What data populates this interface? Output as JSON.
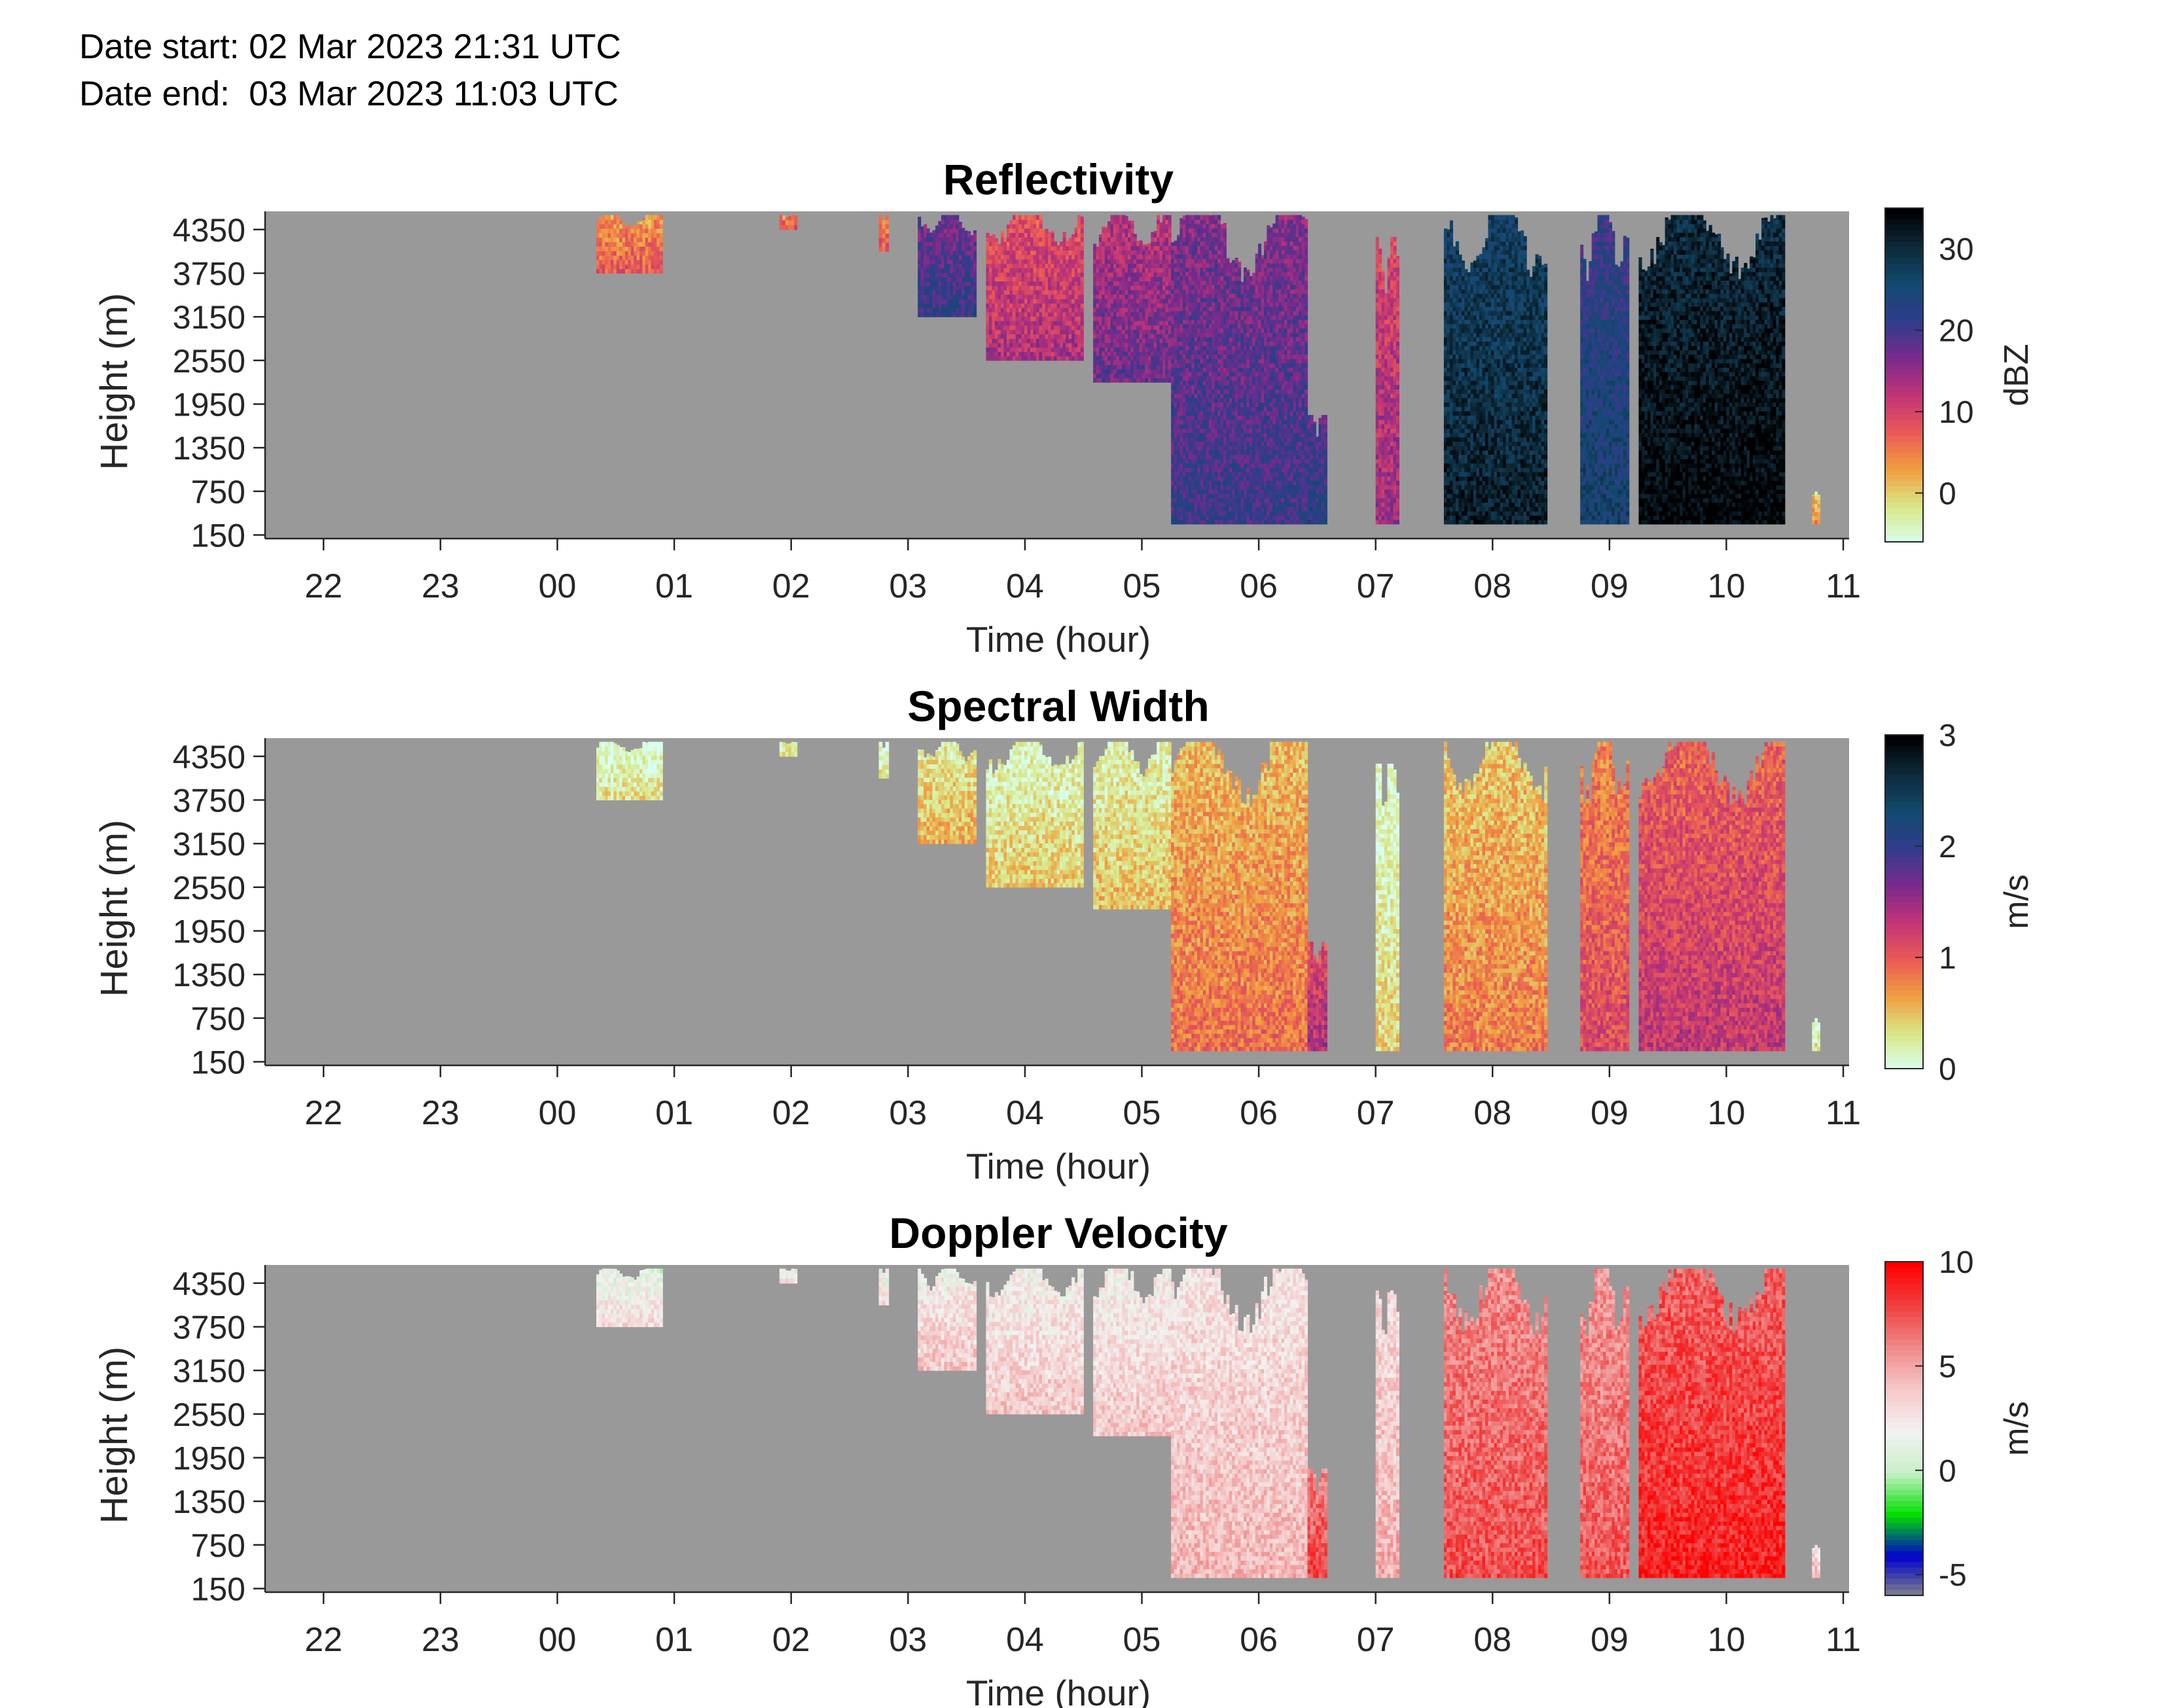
{
  "header": {
    "date_start": "Date start: 02 Mar 2023 21:31 UTC",
    "date_end": "Date end:  03 Mar 2023 11:03 UTC"
  },
  "chart_data": [
    {
      "type": "heatmap",
      "title": "Reflectivity",
      "xlabel": "Time (hour)",
      "ylabel": "Height (m)",
      "x_ticks": [
        "22",
        "23",
        "00",
        "01",
        "02",
        "03",
        "04",
        "05",
        "06",
        "07",
        "08",
        "09",
        "10",
        "11"
      ],
      "y_ticks": [
        "4350",
        "3750",
        "3150",
        "2550",
        "1950",
        "1350",
        "750",
        "150"
      ],
      "colorbar": {
        "label": "dBZ",
        "ticks": [
          "30",
          "20",
          "10",
          "0"
        ],
        "range": [
          -6,
          35
        ]
      },
      "background_color": "#999999",
      "colormap": [
        "#d8fff0",
        "#d9e88a",
        "#f0a040",
        "#ea5a55",
        "#c23575",
        "#7a2a8c",
        "#303c8c",
        "#124a70",
        "#0d2a3a",
        "#000000"
      ],
      "echo_regions": [
        {
          "start": "00:20",
          "end": "00:54",
          "top_m": 4550,
          "bottom_m": 3750,
          "level": 0.28
        },
        {
          "start": "01:54",
          "end": "02:03",
          "top_m": 4550,
          "bottom_m": 4350,
          "level": 0.3
        },
        {
          "start": "02:45",
          "end": "02:50",
          "top_m": 4550,
          "bottom_m": 4050,
          "level": 0.3
        },
        {
          "start": "03:05",
          "end": "03:35",
          "top_m": 4550,
          "bottom_m": 3150,
          "level": 0.62
        },
        {
          "start": "03:40",
          "end": "04:30",
          "top_m": 4550,
          "bottom_m": 2550,
          "level": 0.42
        },
        {
          "start": "04:35",
          "end": "05:15",
          "top_m": 4550,
          "bottom_m": 2250,
          "level": 0.52
        },
        {
          "start": "05:15",
          "end": "06:25",
          "top_m": 4550,
          "bottom_m": 300,
          "level": 0.6
        },
        {
          "start": "06:25",
          "end": "06:35",
          "top_m": 1800,
          "bottom_m": 300,
          "level": 0.66
        },
        {
          "start": "07:00",
          "end": "07:12",
          "top_m": 4250,
          "bottom_m": 300,
          "level": 0.45
        },
        {
          "start": "07:35",
          "end": "08:28",
          "top_m": 4550,
          "bottom_m": 300,
          "level": 0.86
        },
        {
          "start": "08:45",
          "end": "09:10",
          "top_m": 4550,
          "bottom_m": 300,
          "level": 0.72
        },
        {
          "start": "09:15",
          "end": "10:30",
          "top_m": 4550,
          "bottom_m": 300,
          "level": 0.94
        },
        {
          "start": "10:44",
          "end": "10:48",
          "top_m": 750,
          "bottom_m": 300,
          "level": 0.2
        }
      ]
    },
    {
      "type": "heatmap",
      "title": "Spectral Width",
      "xlabel": "Time (hour)",
      "ylabel": "Height (m)",
      "x_ticks": [
        "22",
        "23",
        "00",
        "01",
        "02",
        "03",
        "04",
        "05",
        "06",
        "07",
        "08",
        "09",
        "10",
        "11"
      ],
      "y_ticks": [
        "4350",
        "3750",
        "3150",
        "2550",
        "1950",
        "1350",
        "750",
        "150"
      ],
      "colorbar": {
        "label": "m/s",
        "ticks": [
          "3",
          "2",
          "1",
          "0"
        ],
        "range": [
          0,
          3
        ]
      },
      "background_color": "#999999",
      "colormap": [
        "#d8fff0",
        "#d9e88a",
        "#f0a040",
        "#ea5a55",
        "#c23575",
        "#7a2a8c",
        "#303c8c",
        "#124a70",
        "#0d2a3a",
        "#000000"
      ],
      "echo_regions": [
        {
          "start": "00:20",
          "end": "00:54",
          "top_m": 4550,
          "bottom_m": 3750,
          "level": 0.06
        },
        {
          "start": "01:54",
          "end": "02:03",
          "top_m": 4550,
          "bottom_m": 4350,
          "level": 0.06
        },
        {
          "start": "02:45",
          "end": "02:50",
          "top_m": 4550,
          "bottom_m": 4050,
          "level": 0.06
        },
        {
          "start": "03:05",
          "end": "03:35",
          "top_m": 4550,
          "bottom_m": 3150,
          "level": 0.14
        },
        {
          "start": "03:40",
          "end": "04:30",
          "top_m": 4550,
          "bottom_m": 2550,
          "level": 0.1
        },
        {
          "start": "04:35",
          "end": "05:15",
          "top_m": 4550,
          "bottom_m": 2250,
          "level": 0.12
        },
        {
          "start": "05:15",
          "end": "06:25",
          "top_m": 4550,
          "bottom_m": 300,
          "level": 0.24
        },
        {
          "start": "06:25",
          "end": "06:35",
          "top_m": 1800,
          "bottom_m": 300,
          "level": 0.42
        },
        {
          "start": "07:00",
          "end": "07:12",
          "top_m": 4250,
          "bottom_m": 300,
          "level": 0.08
        },
        {
          "start": "07:35",
          "end": "08:28",
          "top_m": 4550,
          "bottom_m": 300,
          "level": 0.22
        },
        {
          "start": "08:45",
          "end": "09:10",
          "top_m": 4550,
          "bottom_m": 300,
          "level": 0.32
        },
        {
          "start": "09:15",
          "end": "10:30",
          "top_m": 4550,
          "bottom_m": 300,
          "level": 0.38
        },
        {
          "start": "10:44",
          "end": "10:48",
          "top_m": 750,
          "bottom_m": 300,
          "level": 0.05
        }
      ]
    },
    {
      "type": "heatmap",
      "title": "Doppler Velocity",
      "xlabel": "Time (hour)",
      "ylabel": "Height (m)",
      "x_ticks": [
        "22",
        "23",
        "00",
        "01",
        "02",
        "03",
        "04",
        "05",
        "06",
        "07",
        "08",
        "09",
        "10",
        "11"
      ],
      "y_ticks": [
        "4350",
        "3750",
        "3150",
        "2550",
        "1950",
        "1350",
        "750",
        "150"
      ],
      "colorbar": {
        "label": "m/s",
        "ticks": [
          "10",
          "5",
          "0",
          "-5"
        ],
        "range": [
          -6,
          10
        ]
      },
      "background_color": "#999999",
      "colormap": [
        "#888888",
        "#0000cc",
        "#00e000",
        "#c8f0c8",
        "#f2f2f2",
        "#f5c8c8",
        "#f08a8a",
        "#f04040",
        "#ff0000"
      ],
      "echo_regions": [
        {
          "start": "00:20",
          "end": "00:54",
          "top_m": 4550,
          "bottom_m": 3750,
          "level": 0.5
        },
        {
          "start": "01:54",
          "end": "02:03",
          "top_m": 4550,
          "bottom_m": 4350,
          "level": 0.5
        },
        {
          "start": "02:45",
          "end": "02:50",
          "top_m": 4550,
          "bottom_m": 4050,
          "level": 0.5
        },
        {
          "start": "03:05",
          "end": "03:35",
          "top_m": 4550,
          "bottom_m": 3150,
          "level": 0.56
        },
        {
          "start": "03:40",
          "end": "04:30",
          "top_m": 4550,
          "bottom_m": 2550,
          "level": 0.56
        },
        {
          "start": "04:35",
          "end": "05:15",
          "top_m": 4550,
          "bottom_m": 2250,
          "level": 0.56
        },
        {
          "start": "05:15",
          "end": "06:25",
          "top_m": 4550,
          "bottom_m": 300,
          "level": 0.6
        },
        {
          "start": "06:25",
          "end": "06:35",
          "top_m": 1800,
          "bottom_m": 300,
          "level": 0.82
        },
        {
          "start": "07:00",
          "end": "07:12",
          "top_m": 4250,
          "bottom_m": 300,
          "level": 0.62
        },
        {
          "start": "07:35",
          "end": "08:28",
          "top_m": 4550,
          "bottom_m": 300,
          "level": 0.8
        },
        {
          "start": "08:45",
          "end": "09:10",
          "top_m": 4550,
          "bottom_m": 300,
          "level": 0.78
        },
        {
          "start": "09:15",
          "end": "10:30",
          "top_m": 4550,
          "bottom_m": 300,
          "level": 0.88
        },
        {
          "start": "10:44",
          "end": "10:48",
          "top_m": 750,
          "bottom_m": 300,
          "level": 0.58
        }
      ]
    }
  ]
}
